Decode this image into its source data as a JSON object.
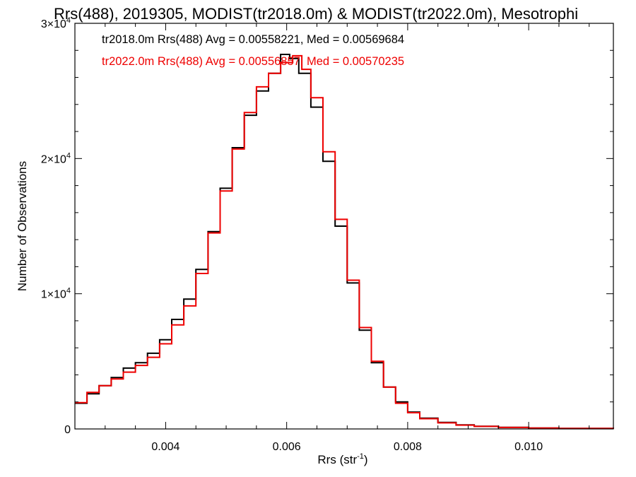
{
  "chart_data": {
    "type": "line",
    "title": "Rrs(488), 2019305, MODIST(tr2018.0m) & MODIST(tr2022.0m), Mesotrophi",
    "xlabel": {
      "base": "Rrs (str",
      "sup": "-1",
      "close": ")"
    },
    "ylabel": "Number of Observations",
    "xlim": [
      0.0025,
      0.0114
    ],
    "ylim": [
      0,
      30000
    ],
    "x_ticks": [
      {
        "value": 0.004,
        "label": "0.004"
      },
      {
        "value": 0.006,
        "label": "0.006"
      },
      {
        "value": 0.008,
        "label": "0.008"
      },
      {
        "value": 0.01,
        "label": "0.010"
      }
    ],
    "y_ticks": [
      {
        "value": 0,
        "label": "0",
        "exp": ""
      },
      {
        "value": 10000,
        "label": "1×10",
        "exp": "4"
      },
      {
        "value": 20000,
        "label": "2×10",
        "exp": "4"
      },
      {
        "value": 30000,
        "label": "3×10",
        "exp": "4"
      }
    ],
    "legend": [
      {
        "text": "tr2018.0m Rrs(488) Avg = 0.00558221, Med = 0.00569684",
        "color": "#000000"
      },
      {
        "text": "tr2022.0m Rrs(488) Avg = 0.00556857, Med = 0.00570235",
        "color": "#ee0000"
      }
    ],
    "legend_position": "top-left",
    "grid": false,
    "series": [
      {
        "color": "#000000",
        "points": [
          [
            0.0025,
            1900
          ],
          [
            0.0027,
            2600
          ],
          [
            0.0029,
            3200
          ],
          [
            0.0031,
            3800
          ],
          [
            0.0033,
            4500
          ],
          [
            0.0035,
            4900
          ],
          [
            0.0037,
            5600
          ],
          [
            0.0039,
            6600
          ],
          [
            0.0041,
            8100
          ],
          [
            0.0043,
            9600
          ],
          [
            0.0045,
            11800
          ],
          [
            0.0047,
            14600
          ],
          [
            0.0049,
            17800
          ],
          [
            0.0051,
            20800
          ],
          [
            0.0053,
            23200
          ],
          [
            0.0055,
            25000
          ],
          [
            0.0057,
            26300
          ],
          [
            0.0059,
            27700
          ],
          [
            0.00605,
            27400
          ],
          [
            0.0062,
            26300
          ],
          [
            0.0064,
            23800
          ],
          [
            0.0066,
            19800
          ],
          [
            0.0068,
            15000
          ],
          [
            0.007,
            10800
          ],
          [
            0.0072,
            7300
          ],
          [
            0.0074,
            4900
          ],
          [
            0.0076,
            3100
          ],
          [
            0.0078,
            2000
          ],
          [
            0.008,
            1250
          ],
          [
            0.0082,
            800
          ],
          [
            0.0085,
            480
          ],
          [
            0.0088,
            300
          ],
          [
            0.0091,
            200
          ],
          [
            0.0095,
            120
          ],
          [
            0.01,
            70
          ],
          [
            0.0105,
            40
          ],
          [
            0.0114,
            20
          ]
        ]
      },
      {
        "color": "#ee0000",
        "points": [
          [
            0.0025,
            1950
          ],
          [
            0.0027,
            2700
          ],
          [
            0.0029,
            3200
          ],
          [
            0.0031,
            3700
          ],
          [
            0.0033,
            4200
          ],
          [
            0.0035,
            4700
          ],
          [
            0.0037,
            5300
          ],
          [
            0.0039,
            6300
          ],
          [
            0.0041,
            7700
          ],
          [
            0.0043,
            9100
          ],
          [
            0.0045,
            11500
          ],
          [
            0.0047,
            14500
          ],
          [
            0.0049,
            17600
          ],
          [
            0.0051,
            20700
          ],
          [
            0.0053,
            23400
          ],
          [
            0.0055,
            25300
          ],
          [
            0.0057,
            26300
          ],
          [
            0.0059,
            27100
          ],
          [
            0.0061,
            27600
          ],
          [
            0.00625,
            26600
          ],
          [
            0.0064,
            24500
          ],
          [
            0.0066,
            20500
          ],
          [
            0.0068,
            15500
          ],
          [
            0.007,
            11000
          ],
          [
            0.0072,
            7500
          ],
          [
            0.0074,
            5000
          ],
          [
            0.0076,
            3100
          ],
          [
            0.0078,
            1900
          ],
          [
            0.008,
            1200
          ],
          [
            0.0082,
            760
          ],
          [
            0.0085,
            450
          ],
          [
            0.0088,
            280
          ],
          [
            0.0091,
            190
          ],
          [
            0.0095,
            110
          ],
          [
            0.01,
            65
          ],
          [
            0.0105,
            40
          ],
          [
            0.0114,
            20
          ]
        ]
      }
    ]
  }
}
